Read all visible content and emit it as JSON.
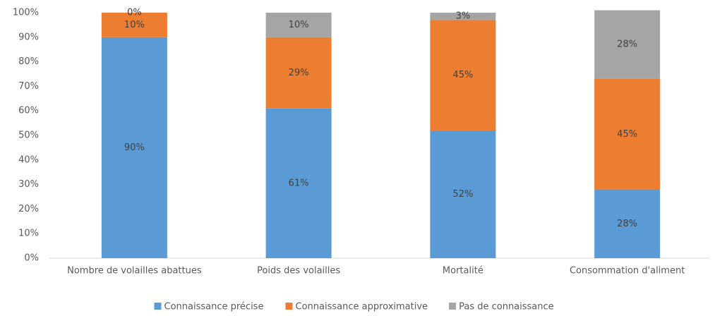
{
  "chart_data": {
    "type": "stacked_bar",
    "categories": [
      "Nombre de volailles abattues",
      "Poids des volailles",
      "Mortalité",
      "Consommation d'aliment"
    ],
    "series": [
      {
        "name": "Connaissance précise",
        "color": "#5b9bd5",
        "values": [
          90,
          61,
          52,
          28
        ],
        "value_labels": [
          "90%",
          "61%",
          "52%",
          "28%"
        ]
      },
      {
        "name": "Connaissance approximative",
        "color": "#ed7d31",
        "values": [
          10,
          29,
          45,
          45
        ],
        "value_labels": [
          "10%",
          "29%",
          "45%",
          "45%"
        ]
      },
      {
        "name": "Pas de connaissance",
        "color": "#a5a5a5",
        "values": [
          0,
          10,
          3,
          28
        ],
        "value_labels": [
          "0%",
          "10%",
          "3%",
          "28%"
        ]
      }
    ],
    "ylim": [
      0,
      100
    ],
    "yticks": [
      {
        "value": 0,
        "label": "0%"
      },
      {
        "value": 10,
        "label": "10%"
      },
      {
        "value": 20,
        "label": "20%"
      },
      {
        "value": 30,
        "label": "30%"
      },
      {
        "value": 40,
        "label": "40%"
      },
      {
        "value": 50,
        "label": "50%"
      },
      {
        "value": 60,
        "label": "60%"
      },
      {
        "value": 70,
        "label": "70%"
      },
      {
        "value": 80,
        "label": "80%"
      },
      {
        "value": 90,
        "label": "90%"
      },
      {
        "value": 100,
        "label": "100%"
      }
    ],
    "grid": false,
    "legend": "bottom"
  }
}
